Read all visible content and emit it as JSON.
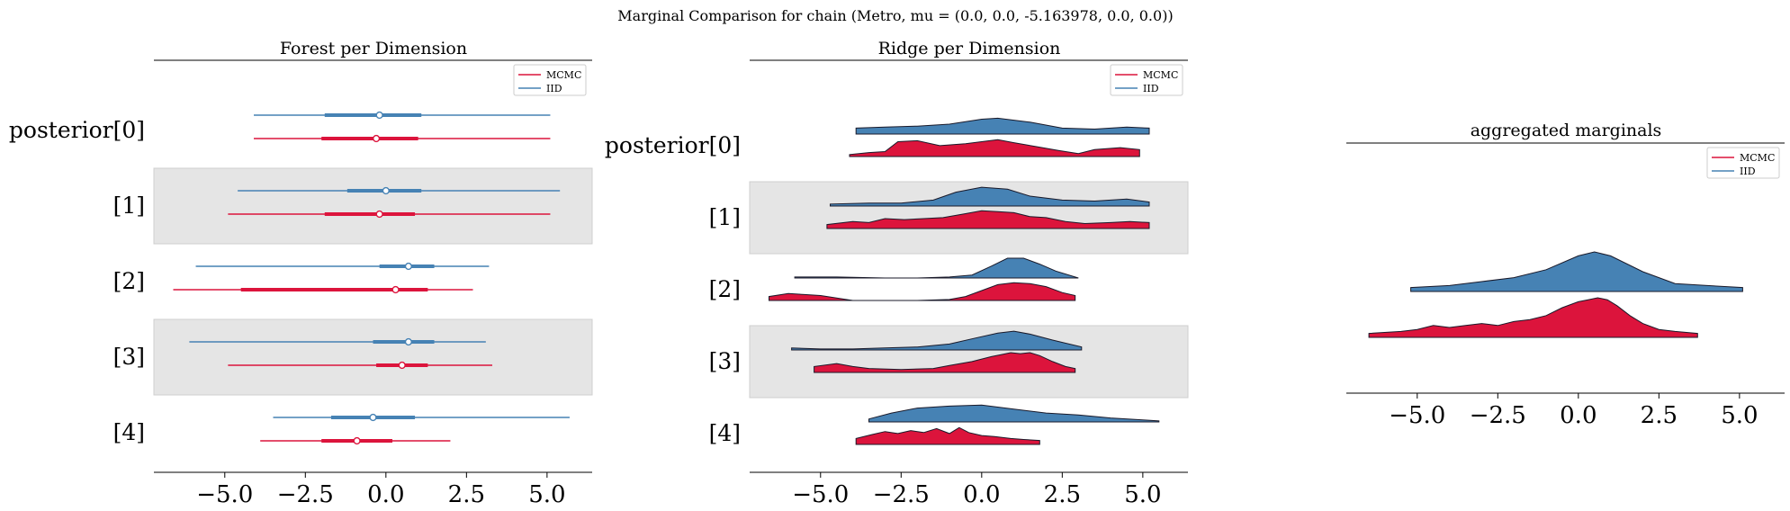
{
  "suptitle": "Marginal Comparison for chain (Metro, mu = (0.0, 0.0, -5.163978, 0.0, 0.0))",
  "colors": {
    "mcmc": "#dc143c",
    "iid": "#4682b4",
    "band": "#e5e5e5"
  },
  "chart_data": [
    {
      "type": "forest",
      "title": "Forest per Dimension",
      "xlim": [
        -7.2,
        6.4
      ],
      "xticks": [
        "−5.0",
        "−2.5",
        "0.0",
        "2.5",
        "5.0"
      ],
      "xtick_values": [
        -5,
        -2.5,
        0,
        2.5,
        5
      ],
      "rows": [
        "posterior[0]",
        "[1]",
        "[2]",
        "[3]",
        "[4]"
      ],
      "shaded_rows": [
        1,
        3
      ],
      "legend": [
        "MCMC",
        "IID"
      ],
      "series": [
        {
          "name": "MCMC",
          "values": [
            {
              "lo": -4.1,
              "q1": -2.0,
              "med": -0.3,
              "q3": 1.0,
              "hi": 5.1
            },
            {
              "lo": -4.9,
              "q1": -1.9,
              "med": -0.2,
              "q3": 0.9,
              "hi": 5.1
            },
            {
              "lo": -6.6,
              "q1": -4.5,
              "med": 0.3,
              "q3": 1.3,
              "hi": 2.7
            },
            {
              "lo": -4.9,
              "q1": -0.3,
              "med": 0.5,
              "q3": 1.3,
              "hi": 3.3
            },
            {
              "lo": -3.9,
              "q1": -2.0,
              "med": -0.9,
              "q3": 0.2,
              "hi": 2.0
            }
          ]
        },
        {
          "name": "IID",
          "values": [
            {
              "lo": -4.1,
              "q1": -1.9,
              "med": -0.2,
              "q3": 1.1,
              "hi": 5.1
            },
            {
              "lo": -4.6,
              "q1": -1.2,
              "med": 0.0,
              "q3": 1.1,
              "hi": 5.4
            },
            {
              "lo": -5.9,
              "q1": -0.2,
              "med": 0.7,
              "q3": 1.5,
              "hi": 3.2
            },
            {
              "lo": -6.1,
              "q1": -0.4,
              "med": 0.7,
              "q3": 1.5,
              "hi": 3.1
            },
            {
              "lo": -3.5,
              "q1": -1.7,
              "med": -0.4,
              "q3": 0.9,
              "hi": 5.7
            }
          ]
        }
      ]
    },
    {
      "type": "ridge",
      "title": "Ridge per Dimension",
      "xlim": [
        -7.2,
        6.4
      ],
      "xticks": [
        "−5.0",
        "−2.5",
        "0.0",
        "2.5",
        "5.0"
      ],
      "xtick_values": [
        -5,
        -2.5,
        0,
        2.5,
        5
      ],
      "rows": [
        "posterior[0]",
        "[1]",
        "[2]",
        "[3]",
        "[4]"
      ],
      "shaded_rows": [
        1,
        3
      ],
      "legend": [
        "MCMC",
        "IID"
      ],
      "series": [
        {
          "name": "IID",
          "ridges": [
            {
              "x": [
                -3.9,
                -3.0,
                -2.0,
                -1.0,
                0.0,
                0.5,
                1.5,
                2.5,
                3.5,
                4.5,
                5.2
              ],
              "y": [
                0.3,
                0.35,
                0.4,
                0.5,
                0.75,
                0.8,
                0.6,
                0.3,
                0.25,
                0.35,
                0.3
              ]
            },
            {
              "x": [
                -4.7,
                -3.5,
                -2.5,
                -1.5,
                -0.8,
                0.0,
                0.8,
                1.5,
                2.5,
                3.5,
                4.5,
                5.2
              ],
              "y": [
                0.1,
                0.15,
                0.15,
                0.3,
                0.7,
                0.95,
                0.85,
                0.5,
                0.3,
                0.25,
                0.35,
                0.2
              ]
            },
            {
              "x": [
                -5.8,
                -4.5,
                -3.0,
                -2.0,
                -1.0,
                -0.3,
                0.3,
                0.8,
                1.3,
                1.8,
                2.3,
                3.0
              ],
              "y": [
                0.05,
                0.05,
                0.0,
                0.0,
                0.05,
                0.15,
                0.6,
                1.0,
                1.0,
                0.7,
                0.35,
                0.0
              ]
            },
            {
              "x": [
                -5.9,
                -5.0,
                -4.0,
                -3.0,
                -2.0,
                -1.0,
                -0.2,
                0.5,
                1.0,
                1.5,
                2.2,
                3.1
              ],
              "y": [
                0.1,
                0.05,
                0.05,
                0.1,
                0.15,
                0.3,
                0.6,
                0.85,
                0.95,
                0.8,
                0.5,
                0.15
              ]
            },
            {
              "x": [
                -3.5,
                -2.8,
                -2.0,
                -1.0,
                0.0,
                1.0,
                2.0,
                3.0,
                4.0,
                5.0,
                5.5
              ],
              "y": [
                0.15,
                0.45,
                0.7,
                0.8,
                0.85,
                0.65,
                0.45,
                0.35,
                0.2,
                0.1,
                0.05
              ]
            }
          ]
        },
        {
          "name": "MCMC",
          "ridges": [
            {
              "x": [
                -4.1,
                -3.5,
                -3.0,
                -2.6,
                -2.0,
                -1.3,
                -0.5,
                0.0,
                0.5,
                1.0,
                1.7,
                2.4,
                3.0,
                3.5,
                4.3,
                4.9
              ],
              "y": [
                0.1,
                0.2,
                0.25,
                0.75,
                0.8,
                0.55,
                0.65,
                0.75,
                0.85,
                0.7,
                0.5,
                0.3,
                0.15,
                0.35,
                0.45,
                0.35
              ]
            },
            {
              "x": [
                -4.8,
                -4.0,
                -3.5,
                -3.0,
                -2.4,
                -1.8,
                -1.2,
                -0.5,
                0.0,
                0.5,
                1.0,
                1.5,
                2.0,
                2.6,
                3.2,
                4.0,
                4.6,
                5.2
              ],
              "y": [
                0.2,
                0.35,
                0.3,
                0.5,
                0.45,
                0.5,
                0.55,
                0.75,
                0.9,
                0.85,
                0.8,
                0.6,
                0.55,
                0.35,
                0.25,
                0.3,
                0.35,
                0.3
              ]
            },
            {
              "x": [
                -6.6,
                -6.0,
                -5.5,
                -5.0,
                -4.0,
                -3.0,
                -2.0,
                -1.0,
                -0.5,
                0.0,
                0.5,
                1.0,
                1.5,
                2.0,
                2.5,
                2.9
              ],
              "y": [
                0.2,
                0.35,
                0.3,
                0.25,
                0.0,
                0.0,
                0.0,
                0.05,
                0.2,
                0.5,
                0.8,
                0.9,
                0.85,
                0.7,
                0.4,
                0.25
              ]
            },
            {
              "x": [
                -5.2,
                -4.5,
                -4.0,
                -3.5,
                -2.5,
                -1.5,
                -1.0,
                -0.3,
                0.3,
                0.6,
                0.9,
                1.2,
                1.5,
                1.8,
                2.2,
                2.6,
                2.9
              ],
              "y": [
                0.3,
                0.45,
                0.3,
                0.2,
                0.15,
                0.2,
                0.35,
                0.55,
                0.8,
                0.9,
                1.0,
                0.95,
                1.0,
                0.85,
                0.55,
                0.3,
                0.2
              ]
            },
            {
              "x": [
                -3.9,
                -3.4,
                -3.0,
                -2.6,
                -2.2,
                -1.8,
                -1.4,
                -1.0,
                -0.7,
                -0.4,
                0.0,
                0.4,
                0.9,
                1.3,
                1.8
              ],
              "y": [
                0.3,
                0.5,
                0.65,
                0.55,
                0.7,
                0.6,
                0.8,
                0.55,
                0.85,
                0.6,
                0.45,
                0.4,
                0.3,
                0.25,
                0.2
              ]
            }
          ]
        }
      ]
    },
    {
      "type": "ridge",
      "title": "aggregated marginals",
      "xlim": [
        -7.2,
        6.4
      ],
      "xticks": [
        "−5.0",
        "−2.5",
        "0.0",
        "2.5",
        "5.0"
      ],
      "xtick_values": [
        -5,
        -2.5,
        0,
        2.5,
        5
      ],
      "legend": [
        "MCMC",
        "IID"
      ],
      "series": [
        {
          "name": "IID",
          "ridge": {
            "x": [
              -5.2,
              -4.0,
              -3.0,
              -2.0,
              -1.0,
              0.0,
              0.5,
              1.0,
              2.0,
              3.0,
              4.0,
              5.1
            ],
            "y": [
              0.1,
              0.15,
              0.25,
              0.35,
              0.55,
              0.9,
              1.0,
              0.9,
              0.5,
              0.2,
              0.15,
              0.1
            ]
          }
        },
        {
          "name": "MCMC",
          "ridge": {
            "x": [
              -6.5,
              -5.5,
              -5.0,
              -4.5,
              -4.0,
              -3.5,
              -3.0,
              -2.5,
              -2.0,
              -1.5,
              -1.0,
              -0.5,
              0.0,
              0.3,
              0.6,
              0.9,
              1.2,
              1.6,
              2.0,
              2.5,
              3.0,
              3.7
            ],
            "y": [
              0.1,
              0.15,
              0.2,
              0.3,
              0.25,
              0.3,
              0.35,
              0.3,
              0.4,
              0.45,
              0.55,
              0.75,
              0.9,
              0.95,
              1.0,
              0.95,
              0.8,
              0.55,
              0.35,
              0.2,
              0.15,
              0.1
            ]
          }
        }
      ]
    }
  ]
}
